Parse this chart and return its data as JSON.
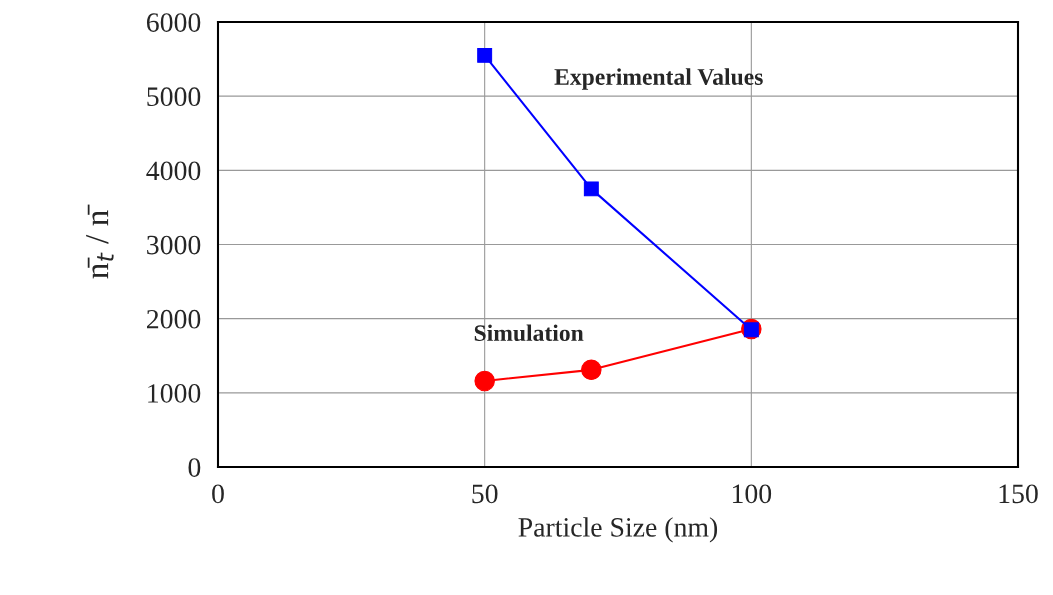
{
  "chart_data": {
    "type": "line",
    "xlabel": "Particle Size (nm)",
    "ylabel": "n̄$_{t}$ / n̄",
    "x": [
      50,
      70,
      100
    ],
    "series": [
      {
        "name": "Experimental Values",
        "color": "#0000ff",
        "marker": "square",
        "values": [
          5550,
          3750,
          1850
        ]
      },
      {
        "name": "Simulation",
        "color": "#ff0000",
        "marker": "circle",
        "values": [
          1160,
          1310,
          1860
        ]
      }
    ],
    "xlim": [
      0,
      150
    ],
    "xticks": [
      0,
      50,
      100,
      150
    ],
    "ylim": [
      0,
      6000
    ],
    "yticks": [
      0,
      1000,
      2000,
      3000,
      4000,
      5000,
      6000
    ],
    "grid": true,
    "legend": false,
    "line_style": "solid"
  }
}
